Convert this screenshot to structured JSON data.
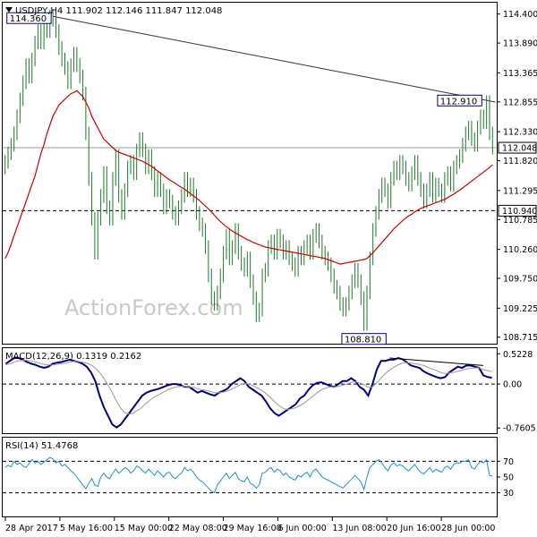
{
  "header": {
    "title": "USDJPY,H4  111.902 112.146 111.847 112.048"
  },
  "watermark": "ActionForex.com",
  "chart_data": [
    {
      "type": "candlestick",
      "name": "USDJPY,H4",
      "ohlc_text": "111.902 112.146 111.847 112.048",
      "ylim": [
        108.6,
        114.6
      ],
      "y_ticks": [
        "114.400",
        "113.890",
        "113.365",
        "112.855",
        "112.330",
        "111.820",
        "111.295",
        "110.785",
        "110.260",
        "109.750",
        "109.225",
        "108.715"
      ],
      "last_price": "112.048",
      "support_level": "110.940",
      "annotations": [
        {
          "label": "114.360",
          "value": 114.36,
          "index": 16
        },
        {
          "label": "112.910",
          "value": 112.91,
          "index": 160
        },
        {
          "label": "108.810",
          "value": 108.81,
          "index": 120
        }
      ],
      "trendline": {
        "from_index": 16,
        "from_value": 114.36,
        "to_index": 164,
        "to_value": 112.85
      },
      "close": [
        111.8,
        111.95,
        112.1,
        112.3,
        112.6,
        112.9,
        113.2,
        113.5,
        113.3,
        113.6,
        113.9,
        114.1,
        113.9,
        114.2,
        114.1,
        114.36,
        114.3,
        114.1,
        113.8,
        113.6,
        113.45,
        113.2,
        113.5,
        113.7,
        113.5,
        113.3,
        113.0,
        112.3,
        111.5,
        110.8,
        110.2,
        110.8,
        111.2,
        111.6,
        111.0,
        110.8,
        111.5,
        111.9,
        111.2,
        110.9,
        111.3,
        111.7,
        111.8,
        111.6,
        112.0,
        112.2,
        112.0,
        111.7,
        111.9,
        111.6,
        111.3,
        111.5,
        111.3,
        111.0,
        111.2,
        111.1,
        110.9,
        110.8,
        111.0,
        111.2,
        111.5,
        111.3,
        111.4,
        111.2,
        110.9,
        110.7,
        110.6,
        110.3,
        109.8,
        109.4,
        109.3,
        109.5,
        109.8,
        110.2,
        110.5,
        110.1,
        110.3,
        110.6,
        110.2,
        110.0,
        109.9,
        110.1,
        109.7,
        109.4,
        109.1,
        109.2,
        109.8,
        109.9,
        110.3,
        110.4,
        110.2,
        110.5,
        110.4,
        110.2,
        110.3,
        110.1,
        110.0,
        109.9,
        110.2,
        110.1,
        110.3,
        110.4,
        110.2,
        110.5,
        110.6,
        110.4,
        110.2,
        110.1,
        110.0,
        109.8,
        109.6,
        109.5,
        109.3,
        109.2,
        109.3,
        109.5,
        109.7,
        109.9,
        109.7,
        109.4,
        108.95,
        109.5,
        110.1,
        110.6,
        110.9,
        111.2,
        111.4,
        111.3,
        111.1,
        111.5,
        111.7,
        111.6,
        111.8,
        111.7,
        111.5,
        111.4,
        111.6,
        111.8,
        111.5,
        111.3,
        111.1,
        111.3,
        111.5,
        111.2,
        111.4,
        111.3,
        111.2,
        111.5,
        111.6,
        111.4,
        111.7,
        111.8,
        111.9,
        112.1,
        112.3,
        112.4,
        112.2,
        112.1,
        112.4,
        112.6,
        112.5,
        112.85,
        112.3,
        112.05
      ],
      "ma": [
        110.1,
        110.2,
        110.35,
        110.5,
        110.65,
        110.8,
        110.95,
        111.1,
        111.25,
        111.4,
        111.55,
        111.75,
        111.95,
        112.1,
        112.3,
        112.45,
        112.6,
        112.7,
        112.8,
        112.85,
        112.9,
        112.95,
        113.0,
        113.02,
        113.05,
        113.0,
        112.95,
        112.85,
        112.75,
        112.6,
        112.5,
        112.4,
        112.3,
        112.2,
        112.15,
        112.1,
        112.05,
        112.0,
        111.97,
        111.95,
        111.93,
        111.91,
        111.89,
        111.87,
        111.85,
        111.83,
        111.81,
        111.78,
        111.75,
        111.72,
        111.68,
        111.64,
        111.6,
        111.56,
        111.52,
        111.48,
        111.45,
        111.42,
        111.38,
        111.35,
        111.32,
        111.28,
        111.24,
        111.2,
        111.16,
        111.12,
        111.07,
        111.02,
        110.97,
        110.92,
        110.86,
        110.8,
        110.75,
        110.7,
        110.66,
        110.62,
        110.58,
        110.55,
        110.52,
        110.49,
        110.46,
        110.43,
        110.41,
        110.38,
        110.36,
        110.34,
        110.32,
        110.3,
        110.29,
        110.28,
        110.27,
        110.26,
        110.25,
        110.24,
        110.23,
        110.22,
        110.21,
        110.2,
        110.19,
        110.18,
        110.17,
        110.16,
        110.15,
        110.14,
        110.13,
        110.12,
        110.11,
        110.1,
        110.08,
        110.06,
        110.04,
        110.02,
        110.0,
        110.01,
        110.02,
        110.03,
        110.04,
        110.05,
        110.06,
        110.07,
        110.08,
        110.1,
        110.15,
        110.2,
        110.26,
        110.32,
        110.38,
        110.44,
        110.5,
        110.56,
        110.62,
        110.67,
        110.72,
        110.77,
        110.81,
        110.85,
        110.88,
        110.92,
        110.95,
        110.98,
        111.0,
        111.02,
        111.04,
        111.06,
        111.08,
        111.1,
        111.12,
        111.14,
        111.17,
        111.2,
        111.23,
        111.27,
        111.3,
        111.34,
        111.38,
        111.42,
        111.46,
        111.5,
        111.54,
        111.58,
        111.62,
        111.66,
        111.7,
        111.75
      ]
    },
    {
      "type": "line",
      "name": "MACD(12,26,9) 0.1319 0.2162",
      "ylim": [
        -0.85,
        0.62
      ],
      "y_ticks": [
        "0.5228",
        "0.00",
        "-0.7605"
      ],
      "zero_line": 0,
      "series": [
        {
          "name": "MACD",
          "values": [
            0.35,
            0.4,
            0.45,
            0.45,
            0.42,
            0.38,
            0.35,
            0.33,
            0.3,
            0.28,
            0.3,
            0.35,
            0.37,
            0.38,
            0.4,
            0.42,
            0.4,
            0.38,
            0.35,
            0.3,
            0.2,
            0.05,
            -0.2,
            -0.4,
            -0.55,
            -0.7,
            -0.75,
            -0.7,
            -0.6,
            -0.5,
            -0.4,
            -0.3,
            -0.2,
            -0.15,
            -0.12,
            -0.1,
            -0.08,
            -0.05,
            -0.02,
            0.0,
            0.0,
            -0.02,
            -0.05,
            -0.05,
            -0.1,
            -0.15,
            -0.12,
            -0.15,
            -0.18,
            -0.2,
            -0.15,
            -0.12,
            -0.08,
            0.0,
            0.05,
            0.1,
            0.05,
            -0.05,
            -0.1,
            -0.15,
            -0.2,
            -0.3,
            -0.42,
            -0.5,
            -0.55,
            -0.5,
            -0.45,
            -0.4,
            -0.35,
            -0.25,
            -0.2,
            -0.1,
            -0.02,
            0.02,
            0.03,
            0.0,
            -0.03,
            -0.05,
            0.0,
            0.05,
            0.05,
            0.1,
            0.05,
            -0.05,
            -0.1,
            -0.2,
            0.0,
            0.25,
            0.4,
            0.4,
            0.42,
            0.42,
            0.45,
            0.43,
            0.38,
            0.32,
            0.3,
            0.28,
            0.22,
            0.18,
            0.15,
            0.12,
            0.1,
            0.12,
            0.2,
            0.25,
            0.3,
            0.28,
            0.32,
            0.32,
            0.3,
            0.28,
            0.15,
            0.12,
            0.11
          ]
        },
        {
          "name": "Signal",
          "values": [
            0.33,
            0.35,
            0.38,
            0.4,
            0.41,
            0.41,
            0.4,
            0.38,
            0.36,
            0.34,
            0.33,
            0.33,
            0.34,
            0.35,
            0.36,
            0.38,
            0.39,
            0.39,
            0.38,
            0.36,
            0.33,
            0.28,
            0.2,
            0.1,
            -0.02,
            -0.15,
            -0.3,
            -0.42,
            -0.5,
            -0.52,
            -0.5,
            -0.45,
            -0.4,
            -0.33,
            -0.27,
            -0.22,
            -0.18,
            -0.14,
            -0.1,
            -0.07,
            -0.05,
            -0.04,
            -0.04,
            -0.05,
            -0.06,
            -0.08,
            -0.1,
            -0.11,
            -0.13,
            -0.15,
            -0.15,
            -0.14,
            -0.12,
            -0.09,
            -0.05,
            -0.01,
            0.01,
            0.0,
            -0.03,
            -0.07,
            -0.11,
            -0.16,
            -0.23,
            -0.3,
            -0.37,
            -0.42,
            -0.44,
            -0.43,
            -0.41,
            -0.37,
            -0.33,
            -0.27,
            -0.21,
            -0.15,
            -0.1,
            -0.07,
            -0.05,
            -0.05,
            -0.04,
            -0.02,
            0.0,
            0.03,
            0.04,
            0.02,
            -0.01,
            -0.06,
            -0.05,
            0.02,
            0.1,
            0.18,
            0.24,
            0.29,
            0.33,
            0.36,
            0.37,
            0.36,
            0.35,
            0.34,
            0.32,
            0.29,
            0.26,
            0.23,
            0.2,
            0.18,
            0.19,
            0.2,
            0.22,
            0.24,
            0.26,
            0.27,
            0.28,
            0.28,
            0.25,
            0.23,
            0.22
          ]
        }
      ],
      "divergence_line": {
        "from_index": 90,
        "from_value": 0.45,
        "to_index": 112,
        "to_value": 0.32
      }
    },
    {
      "type": "line",
      "name": "RSI(14) 51.4768",
      "ylim": [
        0,
        100
      ],
      "y_ticks": [
        "70",
        "50",
        "30"
      ],
      "levels": [
        70,
        30
      ],
      "values": [
        62,
        65,
        63,
        70,
        66,
        68,
        64,
        62,
        67,
        72,
        68,
        70,
        66,
        69,
        72,
        75,
        73,
        68,
        70,
        64,
        66,
        62,
        58,
        55,
        50,
        45,
        40,
        35,
        42,
        48,
        40,
        38,
        50,
        55,
        50,
        48,
        55,
        60,
        55,
        58,
        62,
        60,
        55,
        58,
        64,
        62,
        58,
        55,
        60,
        56,
        52,
        58,
        54,
        50,
        55,
        56,
        50,
        48,
        52,
        55,
        62,
        58,
        60,
        56,
        50,
        46,
        44,
        40,
        36,
        32,
        30,
        40,
        45,
        50,
        55,
        48,
        52,
        56,
        48,
        45,
        44,
        50,
        42,
        40,
        36,
        40,
        55,
        56,
        60,
        62,
        56,
        60,
        58,
        52,
        55,
        50,
        48,
        46,
        52,
        50,
        54,
        56,
        50,
        58,
        60,
        55,
        50,
        48,
        46,
        44,
        42,
        40,
        38,
        36,
        40,
        44,
        48,
        52,
        48,
        44,
        34,
        50,
        62,
        66,
        70,
        72,
        68,
        62,
        58,
        65,
        68,
        64,
        66,
        64,
        60,
        58,
        62,
        66,
        60,
        56,
        54,
        58,
        62,
        56,
        60,
        58,
        56,
        62,
        64,
        60,
        66,
        68,
        68,
        70,
        70,
        72,
        62,
        60,
        66,
        70,
        68,
        72,
        52,
        51
      ]
    }
  ],
  "x_axis": {
    "labels": [
      "28 Apr 2017",
      "5 May 16:00",
      "15 May 00:00",
      "22 May 08:00",
      "29 May 16:00",
      "6 Jun 00:00",
      "13 Jun 08:00",
      "20 Jun 16:00",
      "28 Jun 00:00"
    ]
  }
}
